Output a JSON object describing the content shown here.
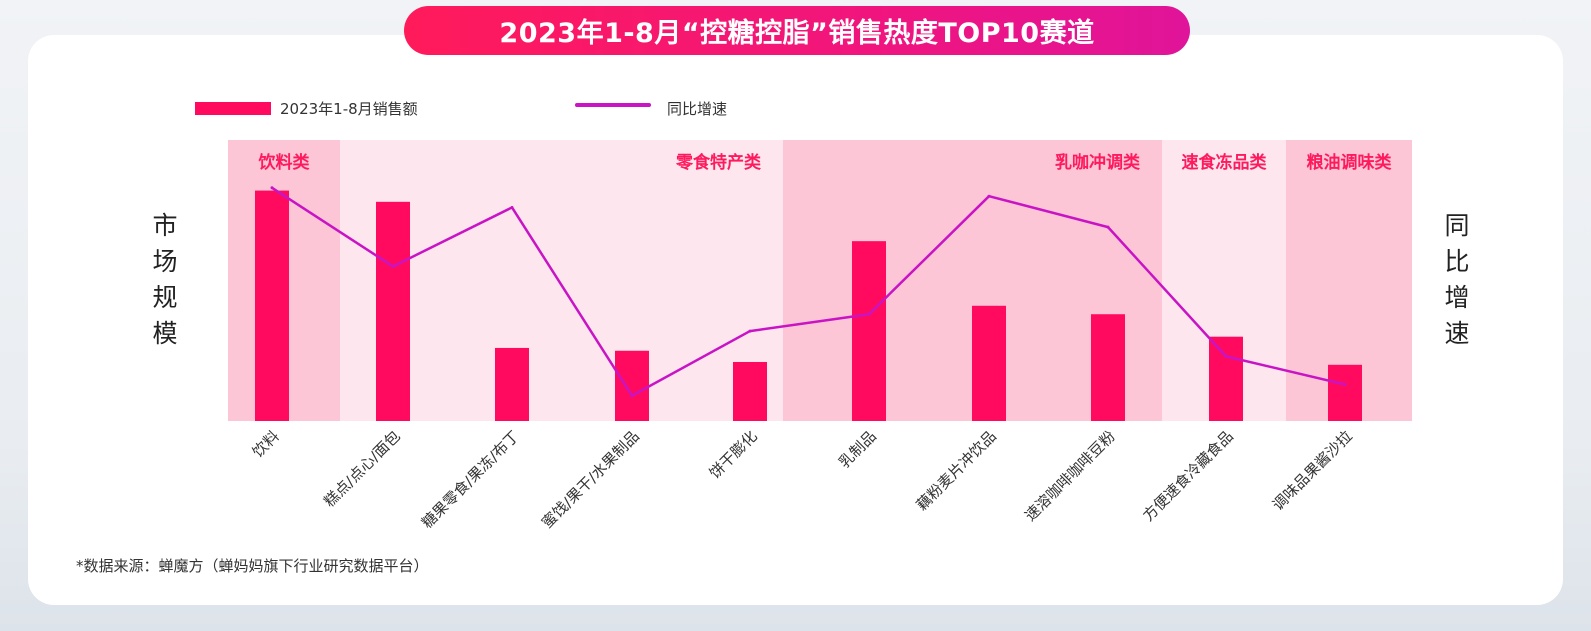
{
  "title": "2023年1-8月“控糖控脂”销售热度TOP10赛道",
  "legend": {
    "bar_label": "2023年1-8月销售额",
    "line_label": "同比增速"
  },
  "left_axis_label": "市场规模",
  "right_axis_label": "同比增速",
  "source": "*数据来源：蝉魔方（蝉妈妈旗下行业研究数据平台）",
  "colors": {
    "bar": "#ff0a5e",
    "line": "#c814c4",
    "title_bg": "#ff1a5a"
  },
  "chart_data": {
    "type": "bar",
    "categories": [
      "饮料",
      "糕点/点心/面包",
      "糖果零食/果冻/布丁",
      "蜜饯/果干/水果制品",
      "饼干膨化",
      "乳制品",
      "藕粉麦片冲饮品",
      "速溶咖啡咖啡豆粉",
      "方便速食冷藏食品",
      "调味品果酱沙拉"
    ],
    "groups": [
      {
        "name": "饮料类",
        "start": 0,
        "end": 0,
        "color": "#fdc6d6"
      },
      {
        "name": "零食特产类",
        "start": 1,
        "end": 4,
        "color": "#fde6ee"
      },
      {
        "name": "乳咖冲调类",
        "start": 5,
        "end": 7,
        "color": "#fdc6d6"
      },
      {
        "name": "速食冻品类",
        "start": 8,
        "end": 8,
        "color": "#fde6ee"
      },
      {
        "name": "粮油调味类",
        "start": 9,
        "end": 9,
        "color": "#fdc6d6"
      }
    ],
    "series": [
      {
        "type": "bar",
        "values": [
          82,
          78,
          26,
          25,
          21,
          64,
          41,
          38,
          30,
          20
        ]
      },
      {
        "type": "line",
        "values": [
          83,
          55,
          76,
          9,
          32,
          38,
          80,
          69,
          23,
          13
        ]
      }
    ],
    "ylim": [
      0,
      100
    ]
  }
}
